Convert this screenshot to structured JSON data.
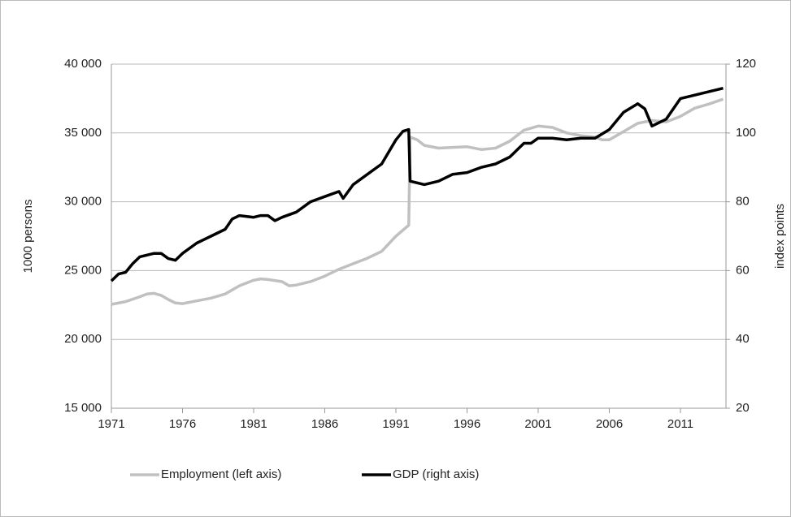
{
  "chart_data": {
    "type": "line",
    "xlim": [
      1971,
      2014.2
    ],
    "xticks": [
      1971,
      1976,
      1981,
      1986,
      1991,
      1996,
      2001,
      2006,
      2011
    ],
    "ylim": [
      15000,
      40000
    ],
    "yticks": [
      {
        "value": 15000,
        "label": "15 000"
      },
      {
        "value": 20000,
        "label": "20 000"
      },
      {
        "value": 25000,
        "label": "25 000"
      },
      {
        "value": 30000,
        "label": "30 000"
      },
      {
        "value": 35000,
        "label": "35 000"
      },
      {
        "value": 40000,
        "label": "40 000"
      }
    ],
    "y2lim": [
      20,
      120
    ],
    "y2ticks": [
      20,
      40,
      60,
      80,
      100,
      120
    ],
    "ylabel": "1000 persons",
    "y2label": "index points",
    "grid": true,
    "legend": "bottom",
    "series": [
      {
        "name": "Employment (left axis)",
        "color": "#c0c0c0",
        "x": [
          1971,
          1972,
          1973,
          1973.5,
          1974,
          1974.5,
          1975,
          1975.5,
          1976,
          1977,
          1978,
          1979,
          1980,
          1981,
          1981.5,
          1982,
          1983,
          1983.5,
          1984,
          1985,
          1986,
          1987,
          1988,
          1989,
          1990,
          1991,
          1991.9,
          1992,
          1992.5,
          1993,
          1994,
          1995,
          1996,
          1997,
          1998,
          1999,
          2000,
          2001,
          2002,
          2003,
          2004,
          2005,
          2005.5,
          2006,
          2007,
          2008,
          2009,
          2010,
          2011,
          2012,
          2013,
          2014
        ],
        "values": [
          22550,
          22750,
          23100,
          23300,
          23350,
          23200,
          22900,
          22650,
          22600,
          22800,
          23000,
          23300,
          23900,
          24300,
          24400,
          24350,
          24200,
          23900,
          23950,
          24200,
          24600,
          25100,
          25500,
          25900,
          26400,
          27500,
          28300,
          34700,
          34500,
          34100,
          33900,
          33950,
          34000,
          33800,
          33900,
          34400,
          35200,
          35500,
          35400,
          35000,
          34800,
          34700,
          34500,
          34500,
          35100,
          35700,
          35900,
          35800,
          36200,
          36800,
          37100,
          37450
        ]
      },
      {
        "name": "GDP (right axis)",
        "color": "#000000",
        "axis": "y2",
        "x": [
          1971,
          1971.5,
          1972,
          1972.5,
          1973,
          1973.5,
          1974,
          1974.5,
          1975,
          1975.5,
          1976,
          1977,
          1978,
          1979,
          1979.5,
          1980,
          1981,
          1981.5,
          1982,
          1982.5,
          1983,
          1984,
          1985,
          1986,
          1987,
          1987.3,
          1988,
          1989,
          1990,
          1991,
          1991.5,
          1991.9,
          1992,
          1993,
          1994,
          1995,
          1996,
          1997,
          1998,
          1999,
          2000,
          2000.5,
          2001,
          2002,
          2003,
          2004,
          2005,
          2006,
          2007,
          2008,
          2008.5,
          2009,
          2010,
          2010.5,
          2011,
          2012,
          2013,
          2014
        ],
        "values": [
          57,
          59,
          59.5,
          62,
          64,
          64.5,
          65,
          65,
          63.5,
          63,
          65,
          68,
          70,
          72,
          75,
          76,
          75.5,
          76,
          76,
          74.5,
          75.5,
          77,
          80,
          81.5,
          83,
          81,
          85,
          88,
          91,
          98,
          100.5,
          101,
          86,
          85,
          86,
          88,
          88.5,
          90,
          91,
          93,
          97,
          97,
          98.5,
          98.5,
          98,
          98.5,
          98.5,
          101,
          106,
          108.5,
          107,
          102,
          104,
          107,
          110,
          111,
          112,
          113
        ]
      }
    ]
  }
}
